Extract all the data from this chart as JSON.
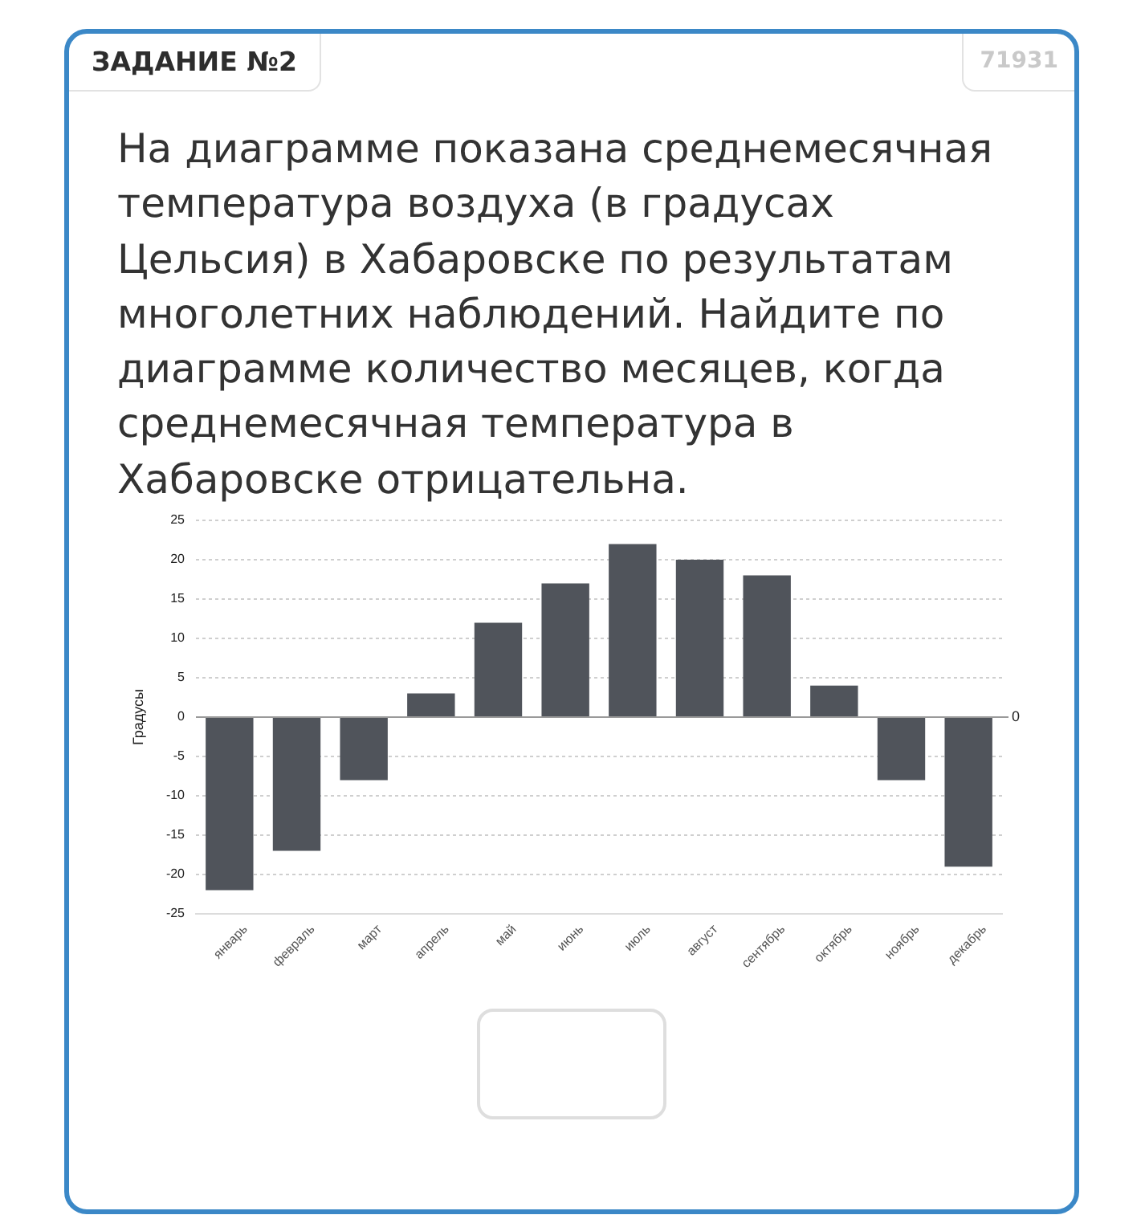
{
  "chart_data": {
    "type": "bar",
    "title": "ЗАДАНИЕ №2",
    "subtitle": "На диаграмме показана среднемесячная температура воздуха (в градусах Цельсия) в Хабаровске по результатам многолетних наблюдений. Найдите по диаграмме количество месяцев, когда среднемесячная температура в Хабаровске отрицательна.",
    "annotations": [
      "71931"
    ],
    "ylabel": "Градусы",
    "categories": [
      "январь",
      "февраль",
      "март",
      "апрель",
      "май",
      "июнь",
      "июль",
      "август",
      "сентябрь",
      "октябрь",
      "ноябрь",
      "декабрь"
    ],
    "values": [
      -22,
      -17,
      -8,
      3,
      12,
      17,
      22,
      20,
      18,
      4,
      -8,
      -19
    ],
    "color": "#50545b",
    "ylim": [
      -25,
      25
    ],
    "yticks": [
      -25,
      -20,
      -15,
      -10,
      -5,
      0,
      5,
      10,
      15,
      20,
      25
    ],
    "grid": "y",
    "ref_lines": [
      {
        "axis": "y",
        "value": 0,
        "label": "0",
        "color": "#9a9a9a"
      }
    ]
  }
}
